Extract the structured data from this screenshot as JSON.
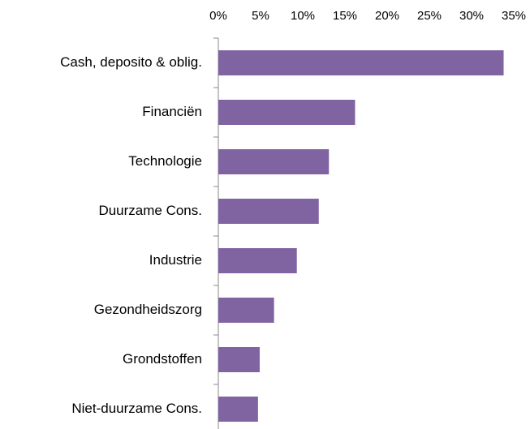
{
  "chart_data": {
    "type": "hbar",
    "categories": [
      "Cash, deposito & oblig.",
      "Financiën",
      "Technologie",
      "Duurzame Cons.",
      "Industrie",
      "Gezondheidszorg",
      "Grondstoffen",
      "Niet-duurzame Cons."
    ],
    "values": [
      33.8,
      16.2,
      13.1,
      11.9,
      9.3,
      6.6,
      4.9,
      4.7
    ],
    "color": "#8064a2",
    "xlim": [
      0,
      35
    ],
    "xticks": [
      {
        "value": 0,
        "label": "0%"
      },
      {
        "value": 5,
        "label": "5%"
      },
      {
        "value": 10,
        "label": "10%"
      },
      {
        "value": 15,
        "label": "15%"
      },
      {
        "value": 20,
        "label": "20%"
      },
      {
        "value": 25,
        "label": "25%"
      },
      {
        "value": 30,
        "label": "30%"
      },
      {
        "value": 35,
        "label": "35%"
      }
    ],
    "grid": false
  }
}
